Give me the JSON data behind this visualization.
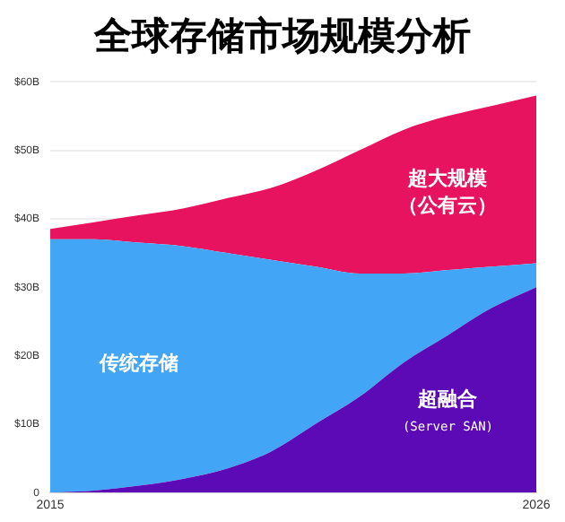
{
  "chart_data": {
    "type": "area",
    "title": "全球存储市场规模分析",
    "stacked": true,
    "x": [
      2015,
      2016,
      2017,
      2018,
      2019,
      2020,
      2021,
      2022,
      2023,
      2024,
      2025,
      2026
    ],
    "series": [
      {
        "name": "超融合 (Server SAN)",
        "color": "#5b0ab5",
        "values": [
          0,
          0.3,
          1,
          2,
          3.5,
          6,
          10,
          14,
          19,
          23,
          27,
          30
        ]
      },
      {
        "name": "传统存储",
        "color": "#42a5f5",
        "values": [
          37,
          36.7,
          35.5,
          34,
          31.5,
          28,
          23,
          18,
          13,
          9.5,
          6,
          3.5
        ]
      },
      {
        "name": "超大规模（公有云）",
        "color": "#e8135e",
        "values": [
          1.5,
          2.5,
          4,
          5.5,
          8,
          10.5,
          14,
          18,
          21,
          22.5,
          23.5,
          24.5
        ]
      }
    ],
    "xlim": [
      2015,
      2026
    ],
    "xticks": [
      2015,
      2026
    ],
    "ylim": [
      0,
      60
    ],
    "yticks": [
      {
        "value": 0,
        "label": "0"
      },
      {
        "value": 10,
        "label": "$10B"
      },
      {
        "value": 20,
        "label": "$20B"
      },
      {
        "value": 30,
        "label": "$30B"
      },
      {
        "value": 40,
        "label": "$40B"
      },
      {
        "value": 50,
        "label": "$50B"
      },
      {
        "value": 60,
        "label": "$60B"
      }
    ],
    "grid": "y",
    "legend": false
  }
}
